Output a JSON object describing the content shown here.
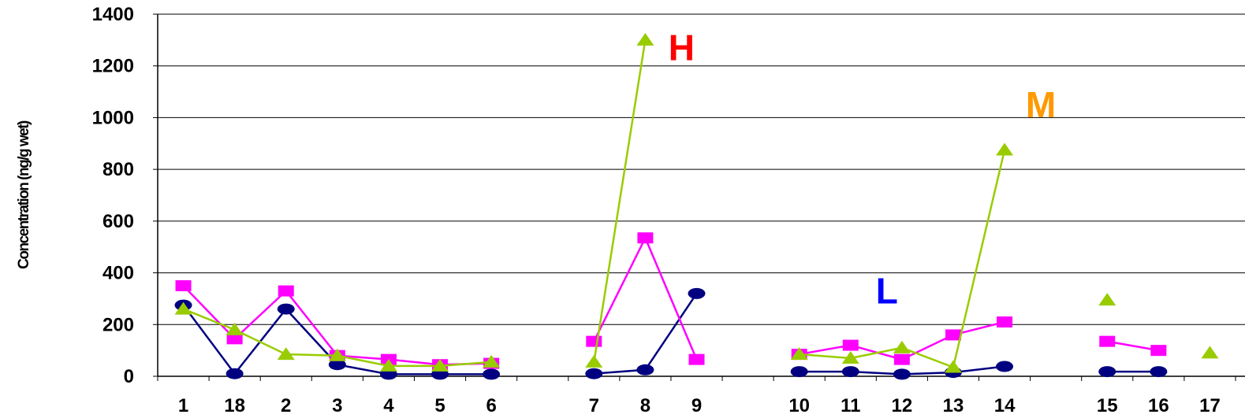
{
  "chart_data": {
    "type": "line",
    "title": "",
    "xlabel": "",
    "ylabel": "Concentration (ng/g wet)",
    "ylim": [
      0,
      1400
    ],
    "yticks": [
      "0",
      "200",
      "400",
      "600",
      "800",
      "1000",
      "1200",
      "1400"
    ],
    "grid": "horizontal",
    "categories": [
      "1",
      "18",
      "2",
      "3",
      "4",
      "5",
      "6",
      "",
      "7",
      "8",
      "9",
      "",
      "10",
      "11",
      "12",
      "13",
      "14",
      "",
      "15",
      "16",
      "17"
    ],
    "series": [
      {
        "color": "#000080",
        "marker": "circle",
        "values": [
          275,
          10,
          260,
          45,
          8,
          8,
          8,
          null,
          10,
          25,
          320,
          null,
          18,
          18,
          8,
          15,
          38,
          null,
          18,
          18,
          null
        ]
      },
      {
        "color": "#FF00FF",
        "marker": "square",
        "values": [
          350,
          145,
          330,
          80,
          65,
          45,
          50,
          null,
          135,
          535,
          65,
          null,
          85,
          120,
          65,
          160,
          210,
          null,
          135,
          100,
          null
        ]
      },
      {
        "color": "#99CC00",
        "marker": "triangle",
        "values": [
          260,
          180,
          85,
          80,
          40,
          40,
          55,
          null,
          55,
          1300,
          null,
          null,
          85,
          70,
          110,
          35,
          875,
          null,
          295,
          null,
          90
        ]
      }
    ],
    "annotations": [
      {
        "text": "H",
        "color": "#FF0000",
        "category": "8",
        "y": 1270
      },
      {
        "text": "M",
        "color": "#FF9900",
        "category": "14",
        "y": 1050
      },
      {
        "text": "L",
        "color": "#0000FF",
        "category": "11",
        "y": 330
      }
    ]
  }
}
